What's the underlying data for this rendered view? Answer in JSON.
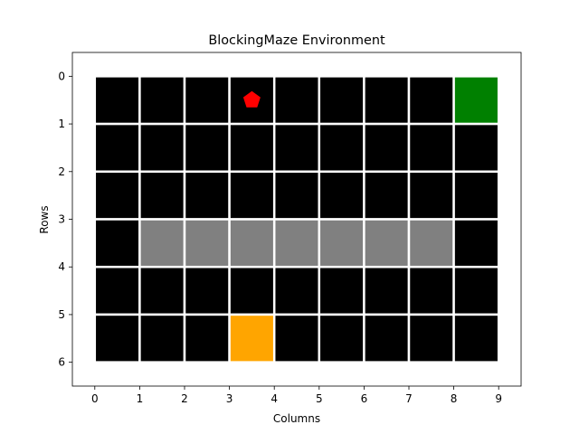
{
  "chart_data": {
    "type": "heatmap",
    "title": "BlockingMaze Environment",
    "xlabel": "Columns",
    "ylabel": "Rows",
    "xlim": [
      -0.5,
      9.5
    ],
    "ylim": [
      6.5,
      -0.5
    ],
    "xticks": [
      "0",
      "1",
      "2",
      "3",
      "4",
      "5",
      "6",
      "7",
      "8",
      "9"
    ],
    "yticks": [
      "0",
      "1",
      "2",
      "3",
      "4",
      "5",
      "6"
    ],
    "grid": {
      "cols": 9,
      "rows": 6,
      "colors": {
        "empty": "#000000",
        "wall": "#808080",
        "goal": "#008000",
        "start": "#FFA500",
        "gridline": "#ffffff",
        "agent": "#FF0000"
      },
      "cells": [
        [
          "empty",
          "empty",
          "empty",
          "empty",
          "empty",
          "empty",
          "empty",
          "empty",
          "goal"
        ],
        [
          "empty",
          "empty",
          "empty",
          "empty",
          "empty",
          "empty",
          "empty",
          "empty",
          "empty"
        ],
        [
          "empty",
          "empty",
          "empty",
          "empty",
          "empty",
          "empty",
          "empty",
          "empty",
          "empty"
        ],
        [
          "empty",
          "wall",
          "wall",
          "wall",
          "wall",
          "wall",
          "wall",
          "wall",
          "empty"
        ],
        [
          "empty",
          "empty",
          "empty",
          "empty",
          "empty",
          "empty",
          "empty",
          "empty",
          "empty"
        ],
        [
          "empty",
          "empty",
          "empty",
          "start",
          "empty",
          "empty",
          "empty",
          "empty",
          "empty"
        ]
      ]
    },
    "agent": {
      "row": 0,
      "col": 3,
      "shape": "pentagon"
    }
  }
}
